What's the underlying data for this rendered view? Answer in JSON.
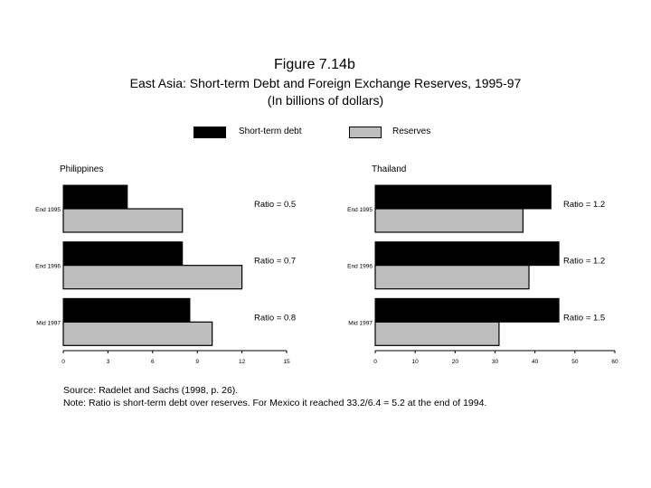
{
  "figure": {
    "title": "Figure 7.14b",
    "subtitle": "East Asia: Short-term Debt and Foreign Exchange Reserves, 1995-97",
    "units": "(In billions of dollars)"
  },
  "legend": {
    "short_term_debt": "Short-term debt",
    "reserves": "Reserves"
  },
  "colors": {
    "short_term_debt": "#000000",
    "reserves": "#bdbdbd"
  },
  "chart_data": [
    {
      "type": "bar",
      "orientation": "horizontal",
      "title": "Philippines",
      "categories": [
        "End 1995",
        "End 1996",
        "Mid 1997"
      ],
      "series": [
        {
          "name": "Short-term debt",
          "values": [
            4.3,
            8.0,
            8.5
          ]
        },
        {
          "name": "Reserves",
          "values": [
            8.0,
            12.0,
            10.0
          ]
        }
      ],
      "annotations": [
        "Ratio = 0.5",
        "Ratio = 0.7",
        "Ratio = 0.8"
      ],
      "xticks": [
        "0",
        "3",
        "6",
        "9",
        "12",
        "15"
      ],
      "xlim": [
        0,
        15
      ]
    },
    {
      "type": "bar",
      "orientation": "horizontal",
      "title": "Thailand",
      "categories": [
        "End 1995",
        "End 1996",
        "Mid 1997"
      ],
      "series": [
        {
          "name": "Short-term debt",
          "values": [
            44,
            46,
            46
          ]
        },
        {
          "name": "Reserves",
          "values": [
            37,
            38.5,
            31
          ]
        }
      ],
      "annotations": [
        "Ratio = 1.2",
        "Ratio = 1.2",
        "Ratio = 1.5"
      ],
      "xticks": [
        "0",
        "10",
        "20",
        "30",
        "40",
        "50",
        "60"
      ],
      "xlim": [
        0,
        60
      ]
    }
  ],
  "footnotes": {
    "source": "Source: Radelet and Sachs (1998, p. 26).",
    "note": "Note:  Ratio is short-term debt over reserves. For Mexico  it reached 33.2/6.4 = 5.2 at the end of 1994."
  }
}
